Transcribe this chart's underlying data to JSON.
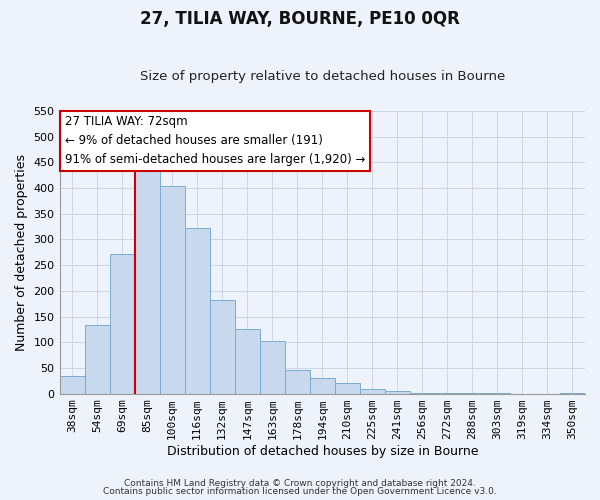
{
  "title": "27, TILIA WAY, BOURNE, PE10 0QR",
  "subtitle": "Size of property relative to detached houses in Bourne",
  "xlabel": "Distribution of detached houses by size in Bourne",
  "ylabel": "Number of detached properties",
  "categories": [
    "38sqm",
    "54sqm",
    "69sqm",
    "85sqm",
    "100sqm",
    "116sqm",
    "132sqm",
    "147sqm",
    "163sqm",
    "178sqm",
    "194sqm",
    "210sqm",
    "225sqm",
    "241sqm",
    "256sqm",
    "272sqm",
    "288sqm",
    "303sqm",
    "319sqm",
    "334sqm",
    "350sqm"
  ],
  "values": [
    35,
    133,
    272,
    433,
    405,
    323,
    183,
    126,
    103,
    46,
    30,
    20,
    8,
    5,
    2,
    1,
    1,
    1,
    0,
    0,
    2
  ],
  "bar_color": "#c8d9ee",
  "bar_edge_color": "#7aadd4",
  "vline_color": "#cc0000",
  "vline_index": 2,
  "ylim": [
    0,
    550
  ],
  "yticks": [
    0,
    50,
    100,
    150,
    200,
    250,
    300,
    350,
    400,
    450,
    500,
    550
  ],
  "annotation_title": "27 TILIA WAY: 72sqm",
  "annotation_line1": "← 9% of detached houses are smaller (191)",
  "annotation_line2": "91% of semi-detached houses are larger (1,920) →",
  "annotation_box_facecolor": "#ffffff",
  "annotation_box_edgecolor": "#cc0000",
  "footer_line1": "Contains HM Land Registry data © Crown copyright and database right 2024.",
  "footer_line2": "Contains public sector information licensed under the Open Government Licence v3.0.",
  "background_color": "#eef2fa",
  "grid_color": "#c8d0e0",
  "title_fontsize": 12,
  "subtitle_fontsize": 9.5,
  "axis_label_fontsize": 9,
  "tick_fontsize": 8,
  "annotation_fontsize": 8.5,
  "footer_fontsize": 6.5
}
